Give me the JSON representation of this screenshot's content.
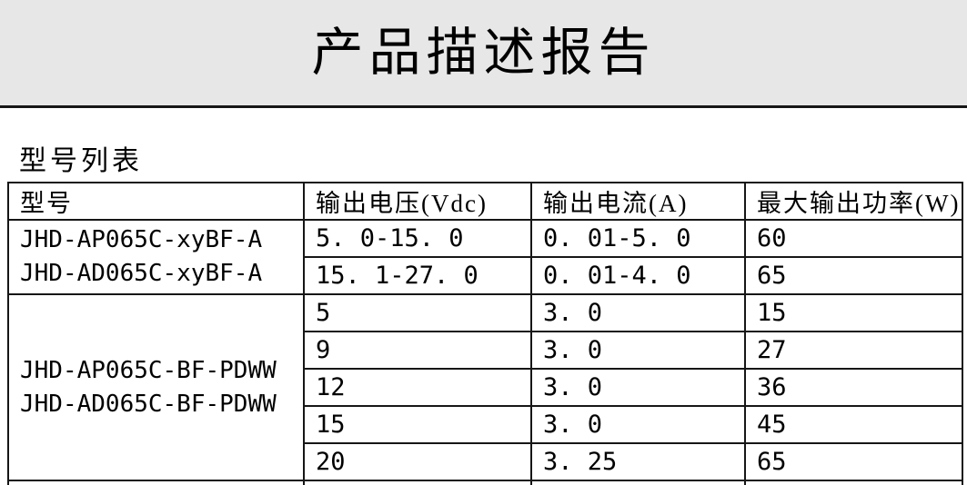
{
  "page": {
    "title": "产品描述报告",
    "section_label": "型号列表"
  },
  "table": {
    "headers": [
      "型号",
      "输出电压(Vdc)",
      "输出电流(A)",
      "最大输出功率(W)"
    ],
    "groups": [
      {
        "models": [
          "JHD-AP065C-xyBF-A",
          "JHD-AD065C-xyBF-A"
        ],
        "rows": [
          {
            "voltage": "5. 0-15. 0",
            "current": "0. 01-5. 0",
            "power": "60"
          },
          {
            "voltage": "15. 1-27. 0",
            "current": "0. 01-4. 0",
            "power": "65"
          }
        ]
      },
      {
        "models": [
          "JHD-AP065C-BF-PDWW",
          "JHD-AD065C-BF-PDWW"
        ],
        "rows": [
          {
            "voltage": "5",
            "current": "3. 0",
            "power": "15"
          },
          {
            "voltage": "9",
            "current": "3. 0",
            "power": "27"
          },
          {
            "voltage": "12",
            "current": "3. 0",
            "power": "36"
          },
          {
            "voltage": "15",
            "current": "3. 0",
            "power": "45"
          },
          {
            "voltage": "20",
            "current": "3. 25",
            "power": "65"
          }
        ]
      }
    ]
  },
  "colors": {
    "header_band_bg": "#e7e7e7",
    "border": "#161616",
    "text": "#000000",
    "page_bg": "#ffffff"
  }
}
